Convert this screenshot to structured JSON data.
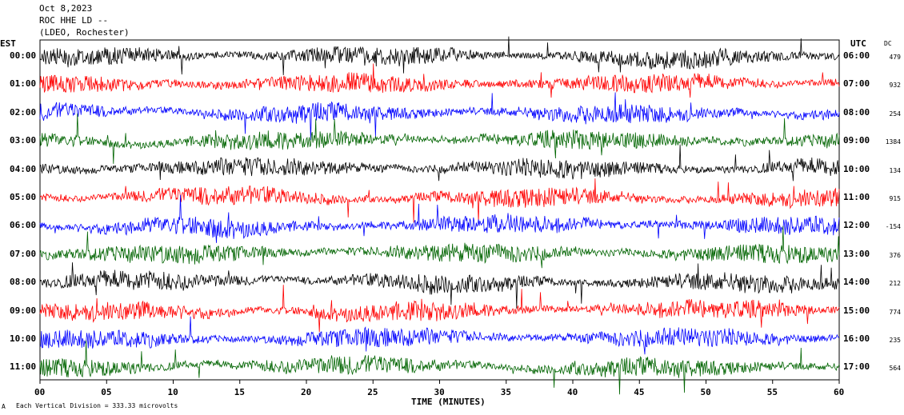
{
  "header": {
    "date": "Oct 8,2023",
    "station": "ROC HHE LD --",
    "network": "(LDEO, Rochester)"
  },
  "left_axis_title": "EST",
  "right_axis_title": "UTC",
  "dc_title": "DC",
  "footer_note": "Each Vertical Division = 333.33 microvolts",
  "corner_mark": "A",
  "chart_data": {
    "type": "line",
    "title": "ROC HHE LD --",
    "xlabel": "TIME (MINUTES)",
    "xlim": [
      0,
      60
    ],
    "x_ticks": [
      "00",
      "05",
      "10",
      "15",
      "20",
      "25",
      "30",
      "35",
      "40",
      "45",
      "50",
      "55",
      "60"
    ],
    "rows": [
      {
        "est": "00:00",
        "utc": "06:00",
        "dc": "479",
        "color": "#000000"
      },
      {
        "est": "01:00",
        "utc": "07:00",
        "dc": "932",
        "color": "#ff0000"
      },
      {
        "est": "02:00",
        "utc": "08:00",
        "dc": "254",
        "color": "#0000ff"
      },
      {
        "est": "03:00",
        "utc": "09:00",
        "dc": "1384",
        "color": "#006400"
      },
      {
        "est": "04:00",
        "utc": "10:00",
        "dc": "134",
        "color": "#000000"
      },
      {
        "est": "05:00",
        "utc": "11:00",
        "dc": "915",
        "color": "#ff0000"
      },
      {
        "est": "06:00",
        "utc": "12:00",
        "dc": "-154",
        "color": "#0000ff"
      },
      {
        "est": "07:00",
        "utc": "13:00",
        "dc": "376",
        "color": "#006400"
      },
      {
        "est": "08:00",
        "utc": "14:00",
        "dc": "212",
        "color": "#000000"
      },
      {
        "est": "09:00",
        "utc": "15:00",
        "dc": "774",
        "color": "#ff0000"
      },
      {
        "est": "10:00",
        "utc": "16:00",
        "dc": "235",
        "color": "#0000ff"
      },
      {
        "est": "11:00",
        "utc": "17:00",
        "dc": "564",
        "color": "#006400"
      }
    ]
  }
}
